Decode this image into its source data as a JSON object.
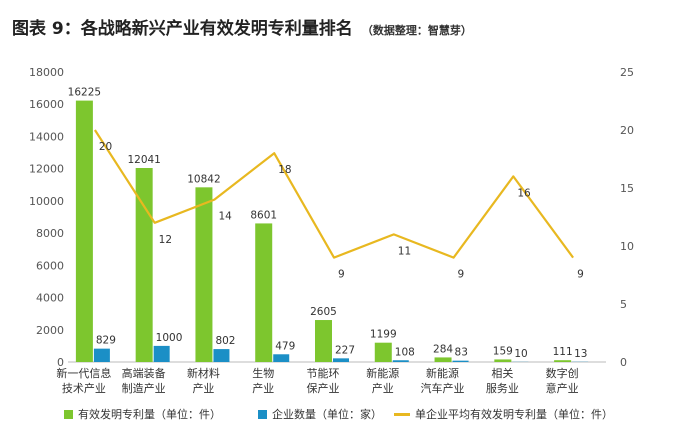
{
  "title": {
    "main": "图表 9：各战略新兴产业有效发明专利量排名",
    "source": "（数据整理：智慧芽）"
  },
  "legend": {
    "s1": "有效发明专利量（单位：件）",
    "s2": "企业数量（单位：家）",
    "s3": "单企业平均有效发明专利量（单位：件）"
  },
  "chart_data": {
    "type": "bar",
    "categories": [
      "新一代信息技术产业",
      "高端装备制造产业",
      "新材料产业",
      "生物产业",
      "节能环保产业",
      "新能源产业",
      "新能源汽车产业",
      "相关服务业",
      "数字创意产业"
    ],
    "category_lines": [
      [
        "新一代信息",
        "技术产业"
      ],
      [
        "高端装备",
        "制造产业"
      ],
      [
        "新材料",
        "产业"
      ],
      [
        "生物",
        "产业"
      ],
      [
        "节能环",
        "保产业"
      ],
      [
        "新能源",
        "产业"
      ],
      [
        "新能源",
        "汽车产业"
      ],
      [
        "相关",
        "服务业"
      ],
      [
        "数字创",
        "意产业"
      ]
    ],
    "series": [
      {
        "name": "有效发明专利量（单位：件）",
        "type": "bar",
        "axis": "left",
        "color": "#7dc62e",
        "values": [
          16225,
          12041,
          10842,
          8601,
          2605,
          1199,
          284,
          159,
          111
        ]
      },
      {
        "name": "企业数量（单位：家）",
        "type": "bar",
        "axis": "left",
        "color": "#1b8fc6",
        "values": [
          829,
          1000,
          802,
          479,
          227,
          108,
          83,
          10,
          13
        ]
      },
      {
        "name": "单企业平均有效发明专利量（单位：件）",
        "type": "line",
        "axis": "right",
        "color": "#e8b820",
        "values": [
          20,
          12,
          14,
          18,
          9,
          11,
          9,
          16,
          9
        ]
      }
    ],
    "ylim_left": [
      0,
      18000
    ],
    "yticks_left": [
      0,
      2000,
      4000,
      6000,
      8000,
      10000,
      12000,
      14000,
      16000,
      18000
    ],
    "ylim_right": [
      0,
      25
    ],
    "yticks_right": [
      0,
      5,
      10,
      15,
      20,
      25
    ],
    "grid": false,
    "legend_position": "bottom"
  }
}
